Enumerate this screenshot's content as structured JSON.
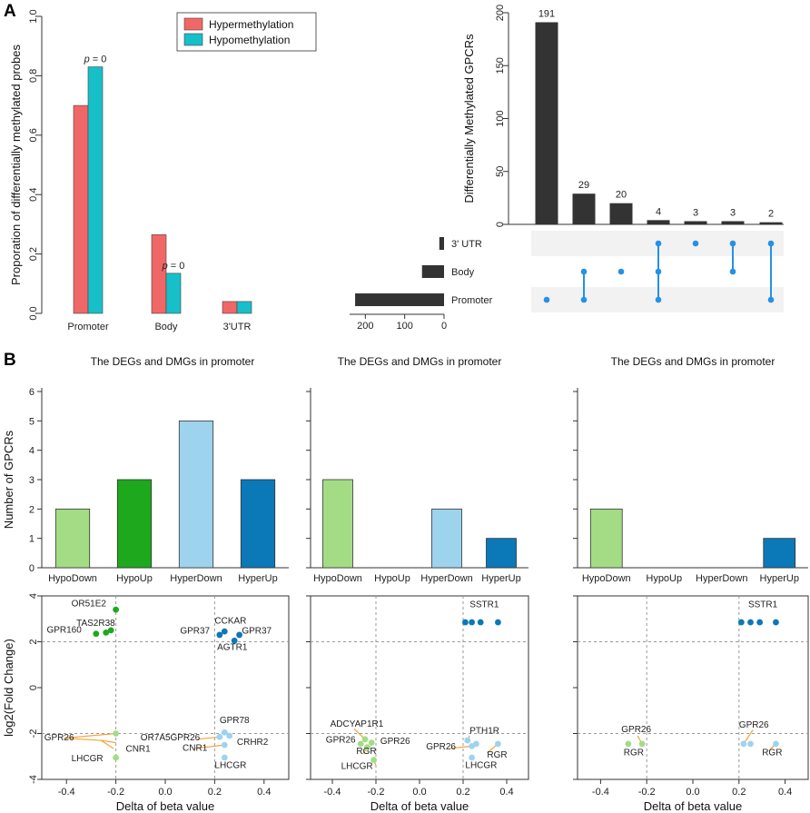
{
  "panel_labels": {
    "a": "A",
    "b": "B"
  },
  "colors": {
    "hyper": "#f06767",
    "hypo": "#17bfc9",
    "upset": "#333333",
    "dot": "#2491e6",
    "HypoDown": "#a4dc86",
    "HypoUp": "#1ea81e",
    "HyperDown": "#9ed3ee",
    "HyperUp": "#0b78b8",
    "leader": "#f4a23a"
  },
  "chart_data": [
    {
      "id": "a-left",
      "type": "bar",
      "categories": [
        "Promoter",
        "Body",
        "3'UTR"
      ],
      "series": [
        {
          "name": "Hypermethylation",
          "values": [
            0.7,
            0.265,
            0.04
          ]
        },
        {
          "name": "Hypomethylation",
          "values": [
            0.83,
            0.135,
            0.04
          ]
        }
      ],
      "ylabel": "Proporation of differentially methylated probes",
      "ylim": [
        0,
        1.0
      ],
      "yticks": [
        "0.0",
        "0.2",
        "0.4",
        "0.6",
        "0.8",
        "1.0"
      ],
      "annotations": [
        {
          "text": "p = 0",
          "category": "Promoter",
          "series": "Hypomethylation"
        },
        {
          "text": "p = 0",
          "category": "Body",
          "series": "Hypomethylation"
        }
      ],
      "legend": "top-center"
    },
    {
      "id": "a-right",
      "type": "bar",
      "ylabel": "Differentially Methylated GPCRs",
      "ylim": [
        0,
        200
      ],
      "yticks": [
        "0",
        "50",
        "100",
        "150",
        "200"
      ],
      "intersections": [
        {
          "value": 191,
          "label": "191",
          "sets": [
            "Promoter"
          ]
        },
        {
          "value": 29,
          "label": "29",
          "sets": [
            "Body",
            "Promoter"
          ]
        },
        {
          "value": 20,
          "label": "20",
          "sets": [
            "Body"
          ]
        },
        {
          "value": 4,
          "label": "4",
          "sets": [
            "3' UTR",
            "Body",
            "Promoter"
          ]
        },
        {
          "value": 3,
          "label": "3",
          "sets": [
            "3' UTR"
          ]
        },
        {
          "value": 3,
          "label": "3",
          "sets": [
            "3' UTR",
            "Body"
          ]
        },
        {
          "value": 2,
          "label": "2",
          "sets": [
            "3' UTR",
            "Promoter"
          ]
        }
      ],
      "sets": [
        {
          "name": "3' UTR",
          "size": 12
        },
        {
          "name": "Body",
          "size": 56
        },
        {
          "name": "Promoter",
          "size": 226
        }
      ],
      "set_axis": {
        "xlim": [
          0,
          240
        ],
        "xticks": [
          "200",
          "100",
          "0"
        ]
      }
    },
    {
      "id": "b-bar-1",
      "type": "bar",
      "title": "The DEGs and DMGs in promoter",
      "ylabel": "Number of GPCRs",
      "categories": [
        "HypoDown",
        "HypoUp",
        "HyperDown",
        "HyperUp"
      ],
      "values": [
        2,
        3,
        5,
        3
      ],
      "ylim": [
        0,
        6
      ],
      "yticks": [
        "0",
        "1",
        "2",
        "3",
        "4",
        "5",
        "6"
      ]
    },
    {
      "id": "b-bar-2",
      "type": "bar",
      "title": "The DEGs and DMGs in promoter",
      "categories": [
        "HypoDown",
        "HypoUp",
        "HyperDown",
        "HyperUp"
      ],
      "values": [
        3,
        0,
        2,
        1
      ],
      "ylim": [
        0,
        6
      ]
    },
    {
      "id": "b-bar-3",
      "type": "bar",
      "title": "The DEGs and DMGs in promoter",
      "categories": [
        "HypoDown",
        "HypoUp",
        "HyperDown",
        "HyperUp"
      ],
      "values": [
        2,
        0,
        0,
        1
      ],
      "ylim": [
        0,
        6
      ]
    },
    {
      "id": "b-scatter-1",
      "type": "scatter",
      "xlabel": "Delta of beta value",
      "ylabel": "log2(Fold Change)",
      "xlim": [
        -0.5,
        0.5
      ],
      "ylim": [
        -4,
        4
      ],
      "xticks": [
        "-0.4",
        "-0.2",
        "0.0",
        "0.2",
        "0.4"
      ],
      "yticks": [
        "-4",
        "-2",
        "0",
        "2",
        "4"
      ],
      "points": [
        {
          "x": -0.2,
          "y": 3.4,
          "group": "HypoUp"
        },
        {
          "x": -0.22,
          "y": 2.5,
          "group": "HypoUp"
        },
        {
          "x": -0.24,
          "y": 2.4,
          "group": "HypoUp"
        },
        {
          "x": -0.28,
          "y": 2.35,
          "group": "HypoUp"
        },
        {
          "x": 0.22,
          "y": 2.3,
          "group": "HyperUp"
        },
        {
          "x": 0.24,
          "y": 2.45,
          "group": "HyperUp"
        },
        {
          "x": 0.28,
          "y": 2.05,
          "group": "HyperUp"
        },
        {
          "x": 0.3,
          "y": 2.3,
          "group": "HyperUp"
        },
        {
          "x": -0.2,
          "y": -2.0,
          "group": "HypoDown"
        },
        {
          "x": -0.2,
          "y": -3.05,
          "group": "HypoDown"
        },
        {
          "x": 0.24,
          "y": -1.95,
          "group": "HyperDown"
        },
        {
          "x": 0.22,
          "y": -2.15,
          "group": "HyperDown"
        },
        {
          "x": 0.26,
          "y": -2.1,
          "group": "HyperDown"
        },
        {
          "x": 0.24,
          "y": -2.5,
          "group": "HyperDown"
        },
        {
          "x": 0.24,
          "y": -3.05,
          "group": "HyperDown"
        }
      ],
      "labels": [
        {
          "text": "OR51E2",
          "x": -0.38,
          "y": 3.55
        },
        {
          "text": "TAS2R38",
          "x": -0.36,
          "y": 2.7
        },
        {
          "text": "GPR160",
          "x": -0.48,
          "y": 2.4
        },
        {
          "text": "CCKAR",
          "x": 0.2,
          "y": 2.8
        },
        {
          "text": "GPR37",
          "x": 0.06,
          "y": 2.35
        },
        {
          "text": "GPR37",
          "x": 0.31,
          "y": 2.35
        },
        {
          "text": "AGTR1",
          "x": 0.21,
          "y": 1.65
        },
        {
          "text": "GPR26",
          "x": -0.49,
          "y": -2.3
        },
        {
          "text": "OR7A5",
          "x": -0.1,
          "y": -2.3
        },
        {
          "text": "CNR1",
          "x": -0.16,
          "y": -2.8
        },
        {
          "text": "LHCGR",
          "x": -0.38,
          "y": -3.2
        },
        {
          "text": "GPR78",
          "x": 0.22,
          "y": -1.55
        },
        {
          "text": "GPR26",
          "x": 0.02,
          "y": -2.3
        },
        {
          "text": "CRHR2",
          "x": 0.29,
          "y": -2.5
        },
        {
          "text": "CNR1",
          "x": 0.07,
          "y": -2.75
        },
        {
          "text": "LHCGR",
          "x": 0.2,
          "y": -3.5
        }
      ],
      "leaders": [
        [
          -0.41,
          -2.2,
          -0.2,
          -2.0
        ],
        [
          -0.41,
          -2.2,
          -0.26,
          -2.3
        ],
        [
          -0.2,
          -2.4,
          -0.26,
          -2.3
        ],
        [
          -0.21,
          -2.65,
          -0.26,
          -2.3
        ],
        [
          0.13,
          -2.25,
          0.22,
          -2.15
        ],
        [
          0.12,
          -2.65,
          0.24,
          -2.5
        ]
      ]
    },
    {
      "id": "b-scatter-2",
      "type": "scatter",
      "xlabel": "Delta of beta value",
      "xlim": [
        -0.5,
        0.5
      ],
      "ylim": [
        -4,
        4
      ],
      "xticks": [
        "-0.4",
        "-0.2",
        "0.0",
        "0.2",
        "0.4"
      ],
      "points": [
        {
          "x": 0.21,
          "y": 2.85,
          "group": "HyperUp"
        },
        {
          "x": 0.24,
          "y": 2.85,
          "group": "HyperUp"
        },
        {
          "x": 0.28,
          "y": 2.85,
          "group": "HyperUp"
        },
        {
          "x": 0.36,
          "y": 2.85,
          "group": "HyperUp"
        },
        {
          "x": -0.27,
          "y": -2.45,
          "group": "HypoDown"
        },
        {
          "x": -0.25,
          "y": -2.25,
          "group": "HypoDown"
        },
        {
          "x": -0.24,
          "y": -2.6,
          "group": "HypoDown"
        },
        {
          "x": -0.22,
          "y": -2.4,
          "group": "HypoDown"
        },
        {
          "x": -0.21,
          "y": -3.15,
          "group": "HypoDown"
        },
        {
          "x": 0.22,
          "y": -2.3,
          "group": "HyperDown"
        },
        {
          "x": 0.24,
          "y": -2.55,
          "group": "HyperDown"
        },
        {
          "x": 0.26,
          "y": -2.45,
          "group": "HyperDown"
        },
        {
          "x": 0.36,
          "y": -2.45,
          "group": "HyperDown"
        },
        {
          "x": 0.24,
          "y": -3.05,
          "group": "HyperDown"
        }
      ],
      "labels": [
        {
          "text": "SSTR1",
          "x": 0.23,
          "y": 3.5
        },
        {
          "text": "ADCYAP1R1",
          "x": -0.41,
          "y": -1.7
        },
        {
          "text": "GPR26",
          "x": -0.43,
          "y": -2.4
        },
        {
          "text": "GPR26",
          "x": -0.18,
          "y": -2.45
        },
        {
          "text": "RGR",
          "x": -0.29,
          "y": -2.9
        },
        {
          "text": "LHCGR",
          "x": -0.36,
          "y": -3.55
        },
        {
          "text": "PTH1R",
          "x": 0.23,
          "y": -2.0
        },
        {
          "text": "GPR26",
          "x": 0.03,
          "y": -2.7
        },
        {
          "text": "RGR",
          "x": 0.31,
          "y": -3.05
        },
        {
          "text": "LHCGR",
          "x": 0.21,
          "y": -3.5
        }
      ],
      "leaders": [
        [
          -0.3,
          -1.8,
          -0.25,
          -2.25
        ],
        [
          -0.26,
          -2.9,
          -0.24,
          -2.6
        ],
        [
          -0.2,
          -3.4,
          -0.21,
          -3.15
        ],
        [
          0.23,
          -2.1,
          0.22,
          -2.3
        ],
        [
          0.14,
          -2.65,
          0.24,
          -2.55
        ],
        [
          0.31,
          -2.85,
          0.36,
          -2.45
        ]
      ]
    },
    {
      "id": "b-scatter-3",
      "type": "scatter",
      "xlabel": "Delta of beta value",
      "xlim": [
        -0.5,
        0.5
      ],
      "ylim": [
        -4,
        4
      ],
      "xticks": [
        "-0.4",
        "-0.2",
        "0.0",
        "0.2",
        "0.4"
      ],
      "points": [
        {
          "x": 0.21,
          "y": 2.85,
          "group": "HyperUp"
        },
        {
          "x": 0.25,
          "y": 2.85,
          "group": "HyperUp"
        },
        {
          "x": 0.29,
          "y": 2.85,
          "group": "HyperUp"
        },
        {
          "x": 0.36,
          "y": 2.85,
          "group": "HyperUp"
        },
        {
          "x": -0.28,
          "y": -2.45,
          "group": "HypoDown"
        },
        {
          "x": -0.22,
          "y": -2.45,
          "group": "HypoDown"
        },
        {
          "x": 0.22,
          "y": -2.45,
          "group": "HyperDown"
        },
        {
          "x": 0.25,
          "y": -2.45,
          "group": "HyperDown"
        },
        {
          "x": 0.36,
          "y": -2.45,
          "group": "HyperDown"
        }
      ],
      "labels": [
        {
          "text": "SSTR1",
          "x": 0.24,
          "y": 3.5
        },
        {
          "text": "GPR26",
          "x": -0.31,
          "y": -1.95
        },
        {
          "text": "RGR",
          "x": -0.3,
          "y": -2.95
        },
        {
          "text": "GPR26",
          "x": 0.2,
          "y": -1.75
        },
        {
          "text": "RGR",
          "x": 0.3,
          "y": -2.95
        }
      ],
      "leaders": [
        [
          -0.24,
          -2.1,
          -0.22,
          -2.45
        ],
        [
          0.26,
          -1.85,
          0.22,
          -2.45
        ],
        [
          0.33,
          -2.75,
          0.36,
          -2.45
        ]
      ]
    }
  ]
}
